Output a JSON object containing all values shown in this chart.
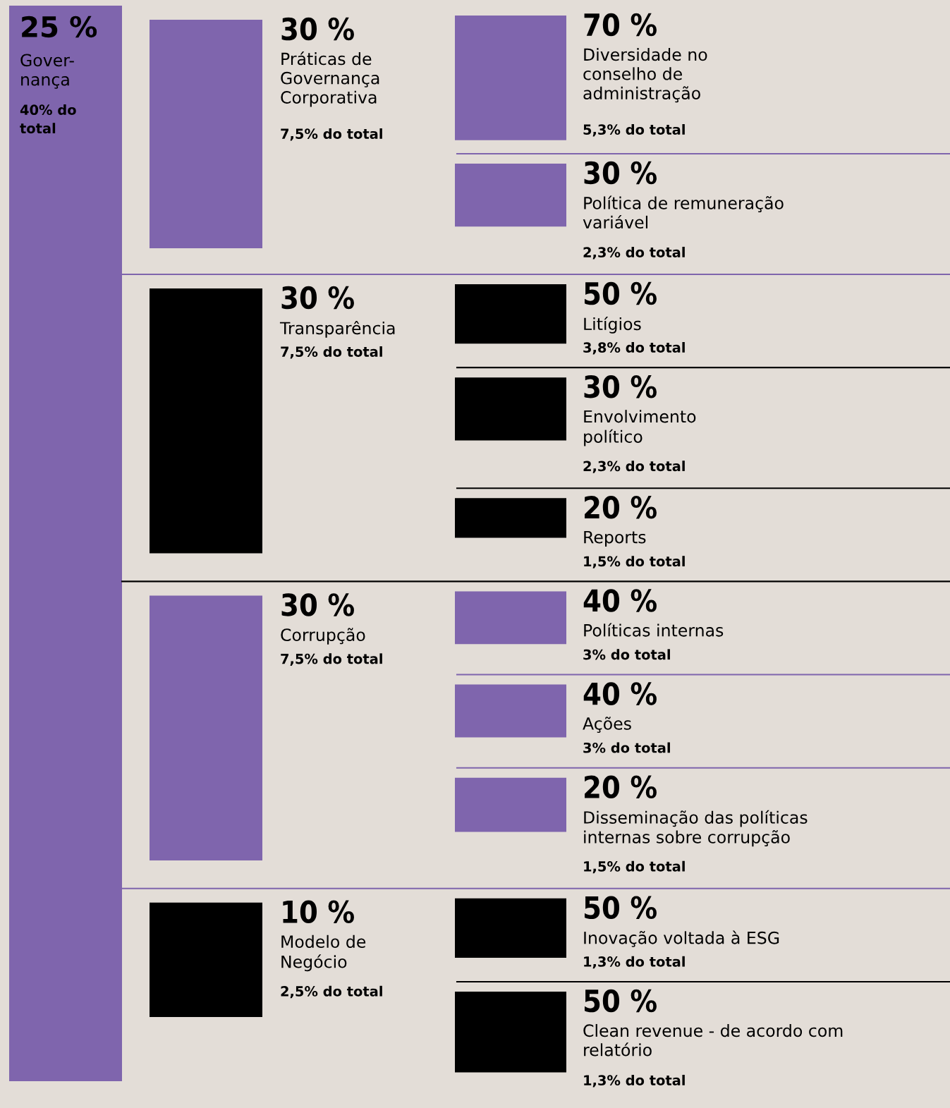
{
  "chart_data": [
    {
      "type": "other",
      "categories": [
        "Gover-\nnança"
      ],
      "values": [
        25
      ],
      "value_labels": [
        "25 %"
      ],
      "annotations": [
        "40% do\ntotal"
      ],
      "colors": [
        "#7f65ad"
      ]
    },
    {
      "type": "other",
      "categories": [
        "Práticas de\nGovernança\nCorporativa",
        "Transparência",
        "Corrupção",
        "Modelo de\nNegócio"
      ],
      "values": [
        30,
        30,
        30,
        10
      ],
      "value_labels": [
        "30 %",
        "30 %",
        "30 %",
        "10 %"
      ],
      "annotations": [
        "7,5% do total",
        "7,5% do total",
        "7,5% do total",
        "2,5% do total"
      ],
      "colors": [
        "#7f65ad",
        "#000000",
        "#7f65ad",
        "#000000"
      ]
    },
    {
      "type": "other",
      "categories": [
        "Diversidade no\nconselho de\nadministração",
        "Política de remuneração\nvariável",
        "Litígios",
        "Envolvimento\npolítico",
        "Reports",
        "Políticas internas",
        "Ações",
        "Disseminação das políticas\ninternas sobre corrupção",
        "Inovação voltada à ESG",
        "Clean revenue - de acordo com\nrelatório"
      ],
      "values": [
        70,
        30,
        50,
        30,
        20,
        40,
        40,
        20,
        50,
        50
      ],
      "value_labels": [
        "70 %",
        "30 %",
        "50 %",
        "30 %",
        "20 %",
        "40 %",
        "40 %",
        "20 %",
        "50 %",
        "50 %"
      ],
      "annotations": [
        "5,3% do total",
        "2,3% do total",
        "3,8% do total",
        "2,3% do total",
        "1,5% do total",
        "3% do total",
        "3% do total",
        "1,5% do total",
        "1,3% do total",
        "1,3% do total"
      ],
      "colors": [
        "#7f65ad",
        "#7f65ad",
        "#000000",
        "#000000",
        "#000000",
        "#7f65ad",
        "#7f65ad",
        "#7f65ad",
        "#000000",
        "#000000"
      ]
    }
  ]
}
